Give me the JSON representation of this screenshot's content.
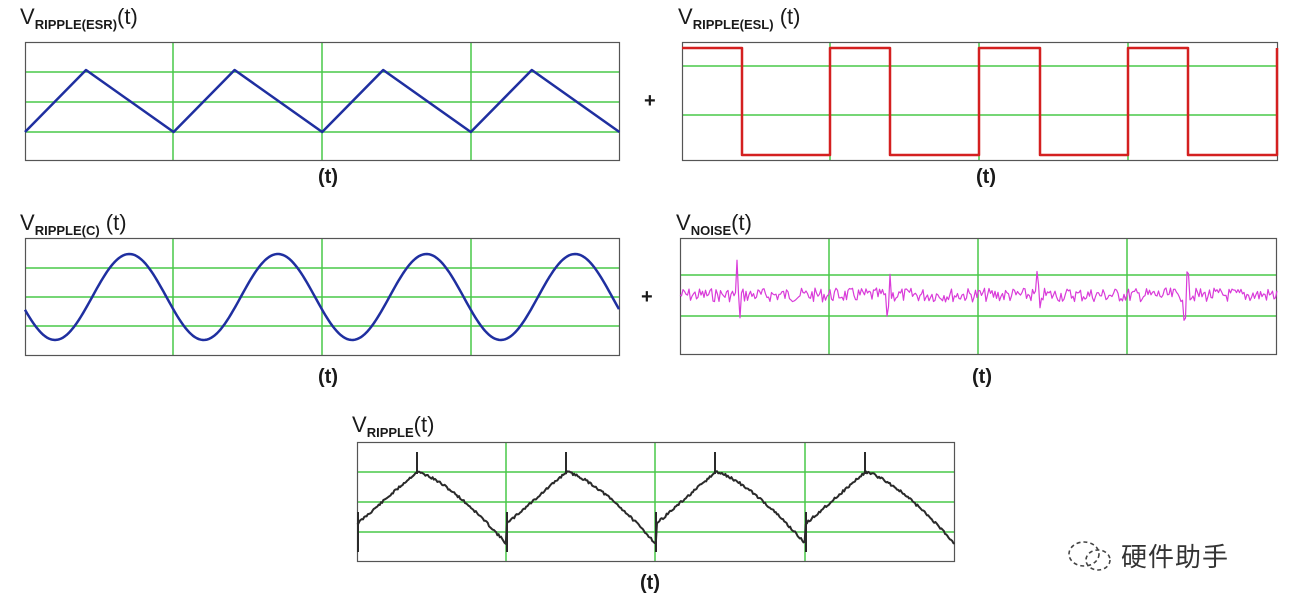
{
  "panels": {
    "esr": {
      "title_main": "V",
      "title_sub": "RIPPLE(ESR)",
      "title_tail": "(t)",
      "xlabel": "(t)"
    },
    "esl": {
      "title_main": "V",
      "title_sub": "RIPPLE(ESL)",
      "title_tail": " (t)",
      "xlabel": "(t)"
    },
    "cap": {
      "title_main": "V",
      "title_sub": "RIPPLE(C)",
      "title_tail": " (t)",
      "xlabel": "(t)"
    },
    "noise": {
      "title_main": "V",
      "title_sub": "NOISE",
      "title_tail": "(t)",
      "xlabel": "(t)"
    },
    "total": {
      "title_main": "V",
      "title_sub": "RIPPLE",
      "title_tail": "(t)",
      "xlabel": "(t)"
    }
  },
  "operators": {
    "plus_1": "+",
    "plus_2": "+"
  },
  "watermark": {
    "text": "硬件助手",
    "icon": "wechat-icon"
  },
  "colors": {
    "grid": "#49c949",
    "frame": "#555555",
    "esr_wave": "#1f2fa0",
    "esl_wave": "#d42020",
    "cap_wave": "#1f2fa0",
    "noise_wave": "#d93bd9",
    "total_wave": "#2a2a2a"
  }
}
